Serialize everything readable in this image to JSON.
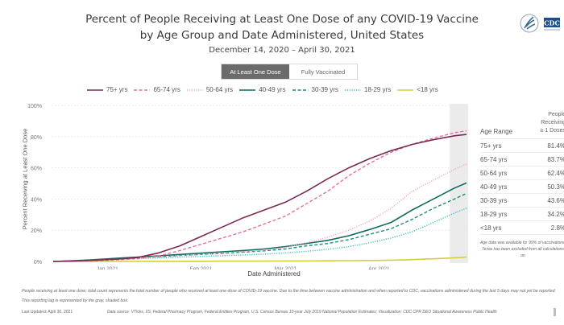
{
  "header": {
    "title_line1": "Percent of People Receiving at Least One Dose of any COVID-19 Vaccine",
    "title_line2": "by Age Group and Date Administered, United States",
    "subtitle": "December 14, 2020 – April 30, 2021",
    "logo_text": "CDC"
  },
  "toggle": {
    "options": [
      "At Least One Dose",
      "Fully Vaccinated"
    ],
    "selected": "At Least One Dose"
  },
  "table": {
    "col1_header": "Age Range",
    "col2_header_lines": [
      "People",
      "Receiving",
      "≥ 1 Doses"
    ],
    "rows": [
      {
        "age": "75+ yrs",
        "value": "81.4%"
      },
      {
        "age": "65-74 yrs",
        "value": "83.7%"
      },
      {
        "age": "50-64 yrs",
        "value": "62.4%"
      },
      {
        "age": "40-49 yrs",
        "value": "50.3%"
      },
      {
        "age": "30-39 yrs",
        "value": "43.6%"
      },
      {
        "age": "18-29 yrs",
        "value": "34.2%"
      },
      {
        "age": "<18 yrs",
        "value": "2.8%"
      }
    ],
    "note": "Age data was available for 99% of vaccinations. Texas has been excluded from all calculations on"
  },
  "footer": {
    "footnote": "People receiving at least one dose; total count represents the total number of people who received at least one dose of COVID-19 vaccine. Due to the time between vaccine administration and when reported to CDC, vaccinations administered during the last 5 days may not yet be reported. This reporting lag is represented by the gray, shaded box.",
    "last_updated": "Last Updated: April 30, 2021",
    "data_source": "Data source: VTrcks, IIS, Federal Pharmacy Program, Federal Entities Program, U.S. Census Bureau 10-year July 2019 National Population Estimates; Visualization: CDC CPR DEO Situational Awareness Public Health"
  },
  "chart_data": {
    "type": "line",
    "title": "Percent of People Receiving at Least One Dose of any COVID-19 Vaccine by Age Group and Date Administered, United States",
    "xlabel": "Date Administered",
    "ylabel": "Percent Receiving at Least One Dose",
    "ylim": [
      0,
      100
    ],
    "yticks": [
      "0%",
      "20%",
      "40%",
      "60%",
      "80%",
      "100%"
    ],
    "ytick_values": [
      0,
      20,
      40,
      60,
      80,
      100
    ],
    "xticks": [
      {
        "label": "Jan 2021",
        "day": 18
      },
      {
        "label": "Feb 2021",
        "day": 49
      },
      {
        "label": "Mar 2021",
        "day": 77
      },
      {
        "label": "Apr 2021",
        "day": 108
      }
    ],
    "x_range_days": [
      0,
      137
    ],
    "x_start_date": "2020-12-14",
    "reporting_lag_days": 5,
    "grid": true,
    "legend_position": "top",
    "x": [
      0,
      7,
      14,
      21,
      28,
      35,
      42,
      49,
      56,
      63,
      70,
      77,
      84,
      91,
      98,
      105,
      112,
      119,
      126,
      133,
      137
    ],
    "series": [
      {
        "name": "75+ yrs",
        "color": "#7b2a52",
        "style": "solid",
        "values": [
          0,
          0.3,
          0.8,
          1.5,
          2.5,
          5.5,
          10,
          16,
          22,
          28,
          33,
          38,
          45,
          53,
          60,
          66,
          71,
          75,
          78,
          80.5,
          81.4
        ]
      },
      {
        "name": "65-74 yrs",
        "color": "#e0719f",
        "style": "dashed",
        "values": [
          0,
          0.2,
          0.5,
          1.0,
          1.8,
          3.5,
          7,
          11,
          15,
          19,
          24,
          29,
          37,
          45,
          55,
          63,
          70,
          75,
          79,
          82.5,
          83.7
        ]
      },
      {
        "name": "50-64 yrs",
        "color": "#f0a8c4",
        "style": "dotted",
        "values": [
          0,
          0.4,
          1.0,
          1.6,
          2.3,
          3.0,
          3.8,
          4.6,
          5.5,
          6.3,
          7.2,
          9,
          12,
          15.5,
          20,
          26,
          34,
          45,
          52,
          59,
          62.4
        ]
      },
      {
        "name": "40-49 yrs",
        "color": "#0f6b5e",
        "style": "solid",
        "values": [
          0,
          0.5,
          1.2,
          2.0,
          2.8,
          3.6,
          4.5,
          5.3,
          6.2,
          7.0,
          8.0,
          9.5,
          11.5,
          13.5,
          16.5,
          20.5,
          25,
          33,
          40,
          47,
          50.3
        ]
      },
      {
        "name": "30-39 yrs",
        "color": "#1f8a7d",
        "style": "dashed",
        "values": [
          0,
          0.4,
          1.0,
          1.7,
          2.4,
          3.0,
          3.8,
          4.5,
          5.2,
          6.0,
          6.8,
          8,
          10,
          11.5,
          14,
          17.5,
          21,
          27,
          34,
          40,
          43.6
        ]
      },
      {
        "name": "18-29 yrs",
        "color": "#3cc2b8",
        "style": "dotted",
        "values": [
          0,
          0.3,
          0.8,
          1.3,
          1.8,
          2.3,
          2.8,
          3.2,
          3.7,
          4.2,
          4.7,
          5.5,
          6.5,
          7.8,
          9.5,
          12,
          15,
          19,
          25,
          31,
          34.2
        ]
      },
      {
        "name": "<18 yrs",
        "color": "#d4cf3a",
        "style": "solid",
        "values": [
          0,
          0,
          0,
          0,
          0.1,
          0.1,
          0.1,
          0.1,
          0.2,
          0.2,
          0.2,
          0.3,
          0.3,
          0.4,
          0.5,
          0.6,
          0.8,
          1.2,
          1.7,
          2.3,
          2.8
        ]
      }
    ]
  }
}
